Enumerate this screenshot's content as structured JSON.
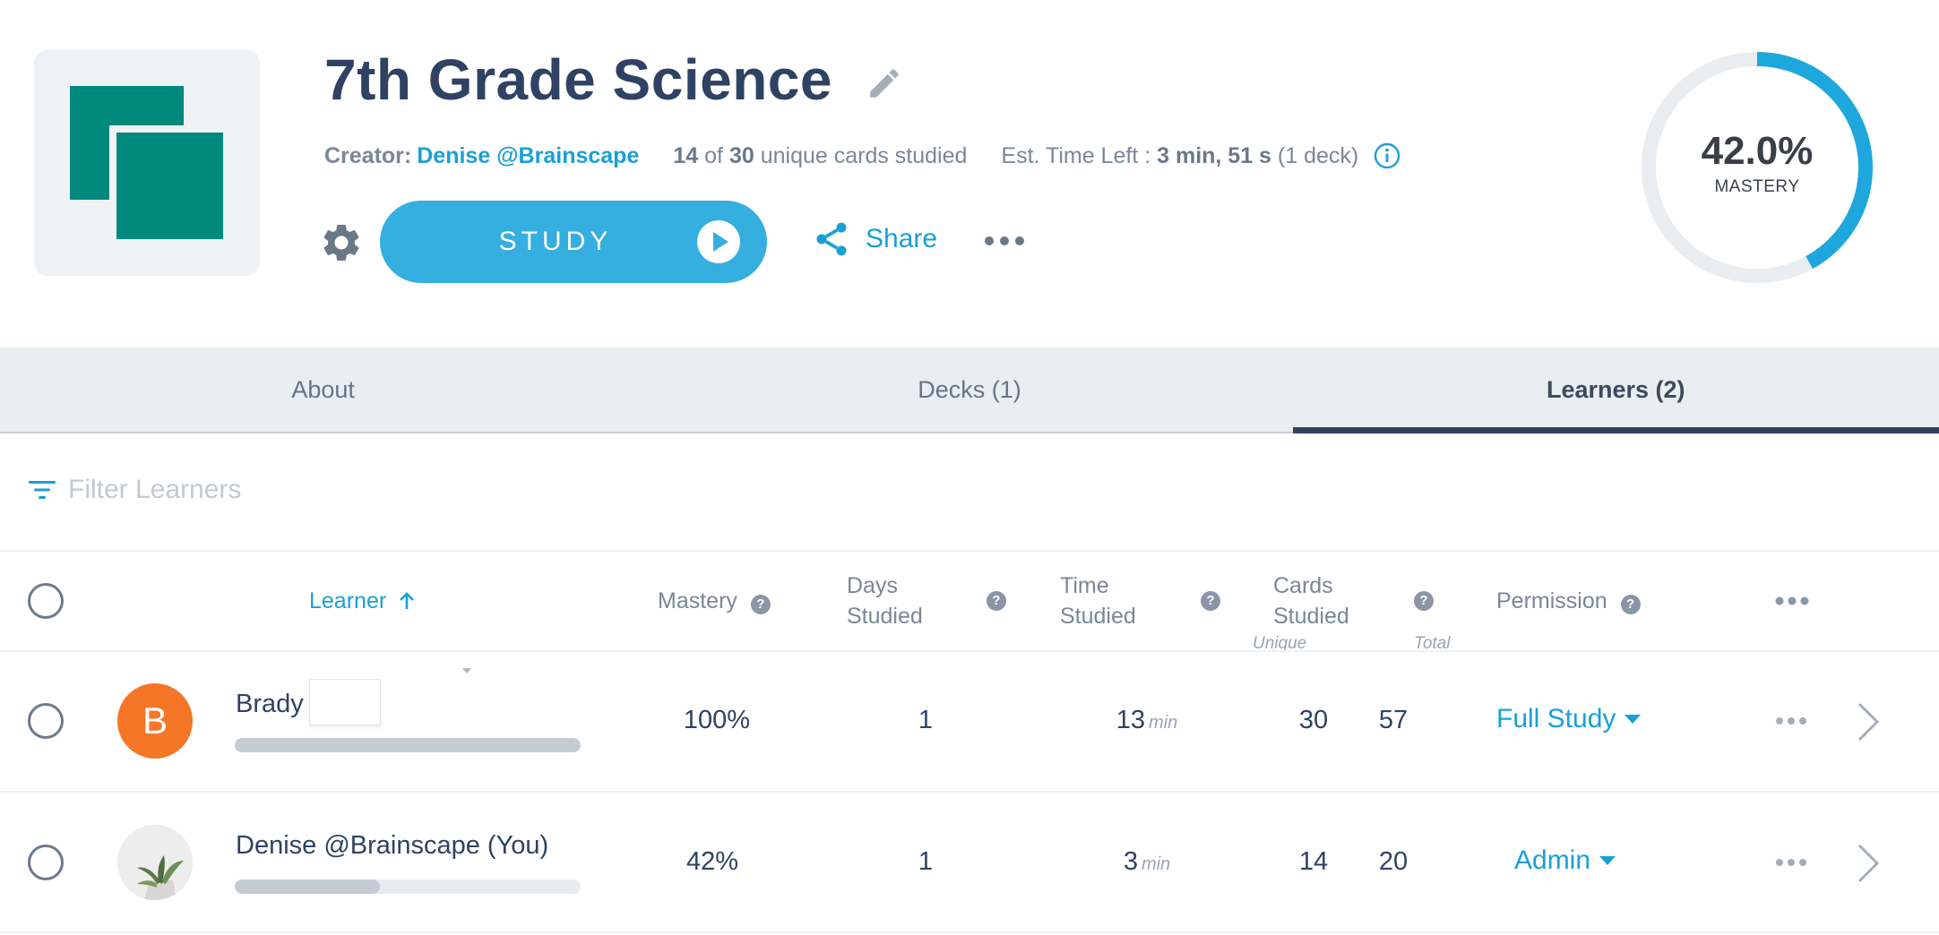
{
  "header": {
    "title": "7th Grade Science",
    "creator_label": "Creator:",
    "creator_name": "Denise @Brainscape",
    "cards_studied": "14",
    "cards_of": "of",
    "cards_total": "30",
    "cards_suffix": "unique cards studied",
    "est_label": "Est. Time Left :",
    "est_value": "3 min, 51 s",
    "est_suffix": "(1 deck)",
    "study_label": "STUDY",
    "share_label": "Share",
    "mastery_value": "42.0%",
    "mastery_label": "MASTERY",
    "mastery_fraction": 0.42,
    "colors": {
      "accent": "#35aee0",
      "link": "#1a9fd7",
      "title": "#2f4263",
      "thumb": "#00897d"
    }
  },
  "tabs": [
    {
      "label": "About",
      "active": false
    },
    {
      "label": "Decks (1)",
      "active": false
    },
    {
      "label": "Learners (2)",
      "active": true
    }
  ],
  "filter": {
    "placeholder": "Filter Learners"
  },
  "table": {
    "headers": {
      "learner": "Learner",
      "mastery": "Mastery",
      "days_line1": "Days",
      "days_line2": "Studied",
      "time_line1": "Time",
      "time_line2": "Studied",
      "cards_line1": "Cards",
      "cards_line2": "Studied",
      "unique": "Unique",
      "total": "Total",
      "permission": "Permission",
      "help": "?"
    },
    "rows": [
      {
        "initial": "B",
        "name": "Brady",
        "mastery": "100%",
        "mastery_fraction": 1.0,
        "days": "1",
        "time": "13",
        "time_unit": "min",
        "unique": "30",
        "total": "57",
        "permission": "Full Study"
      },
      {
        "initial": "",
        "name": "Denise @Brainscape (You)",
        "mastery": "42%",
        "mastery_fraction": 0.42,
        "days": "1",
        "time": "3",
        "time_unit": "min",
        "unique": "14",
        "total": "20",
        "permission": "Admin"
      }
    ]
  }
}
